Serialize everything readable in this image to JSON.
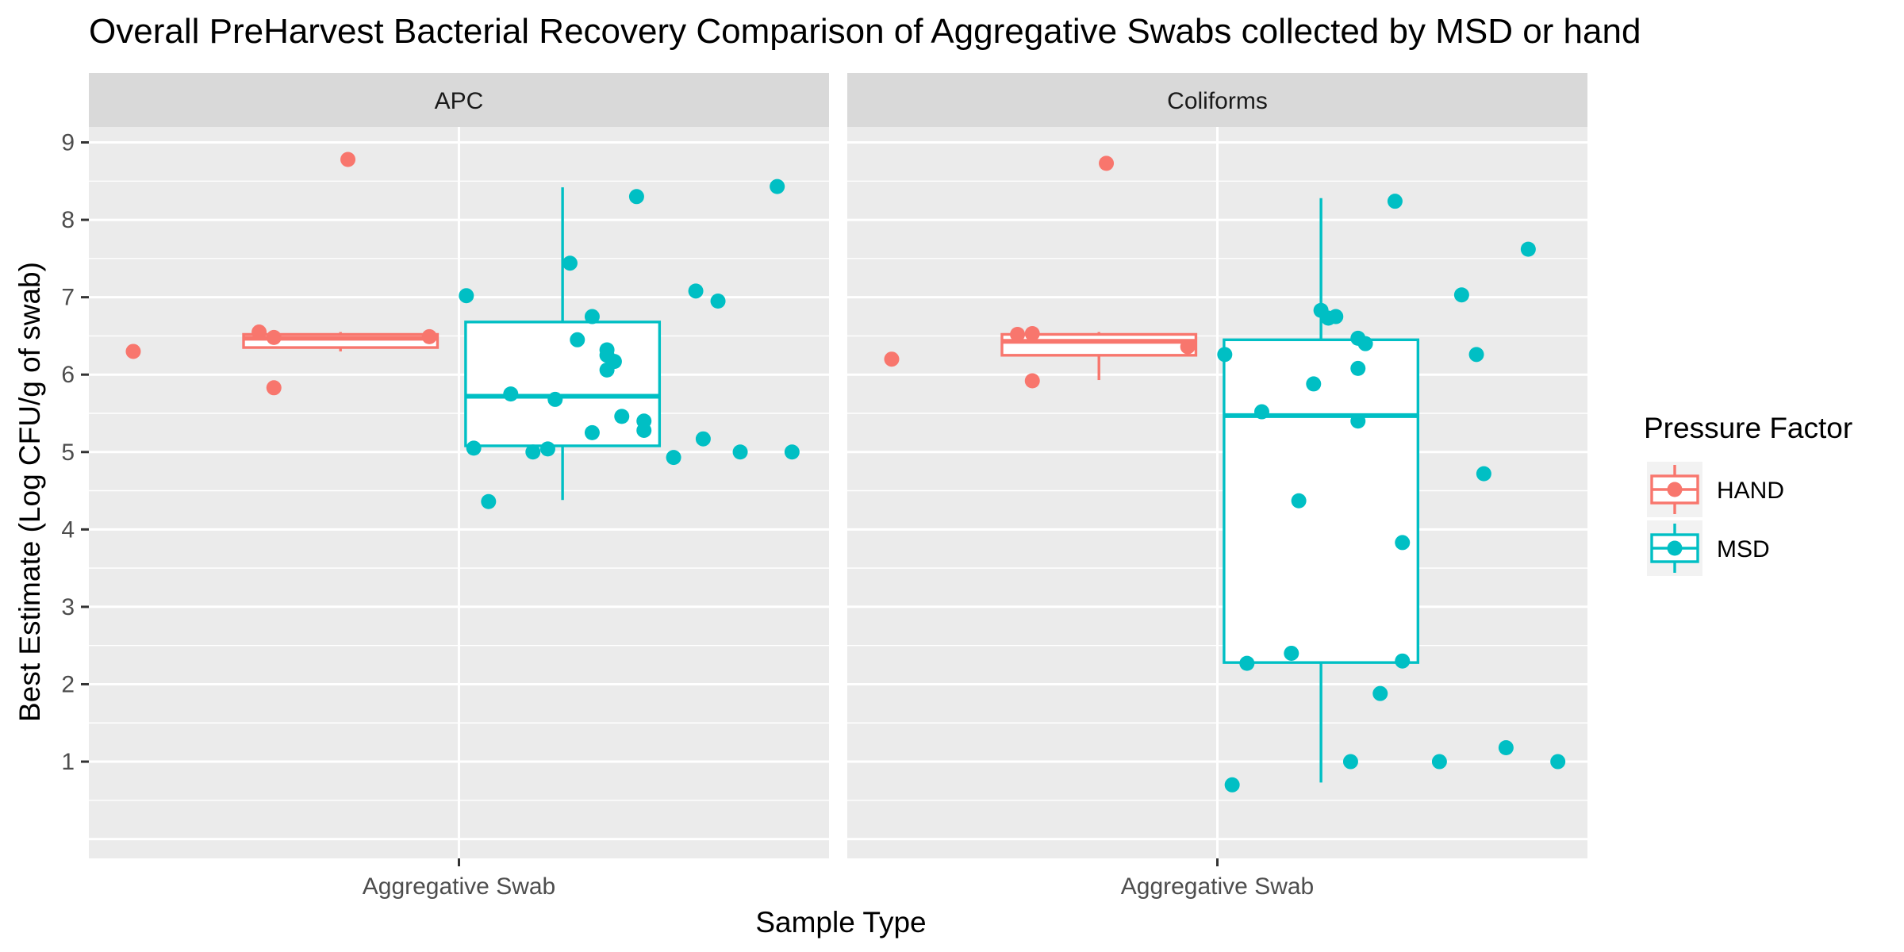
{
  "colors": {
    "panel_bg": "#EBEBEB",
    "strip_bg": "#D9D9D9",
    "grid": "#FFFFFF",
    "text": "#000000",
    "tick_text": "#4D4D4D",
    "legend_key_bg": "#F2F2F2"
  },
  "chart_data": {
    "type": "boxplot",
    "title": "Overall PreHarvest Bacterial Recovery Comparison of Aggregative Swabs collected by MSD or hand",
    "xlabel": "Sample Type",
    "ylabel": "Best Estimate (Log CFU/g of swab)",
    "y_range": [
      -0.25,
      9.2
    ],
    "y_ticks": [
      1,
      2,
      3,
      4,
      5,
      6,
      7,
      8,
      9
    ],
    "x_tick_label": "Aggregative Swab",
    "grid": true,
    "legend": {
      "title": "Pressure Factor",
      "position": "right",
      "items": [
        {
          "label": "HAND",
          "color": "#F8766D"
        },
        {
          "label": "MSD",
          "color": "#00BFC4"
        }
      ]
    },
    "panels": [
      {
        "name": "APC",
        "groups": [
          {
            "name": "HAND",
            "color": "#F8766D",
            "box": {
              "min": 6.3,
              "q1": 6.35,
              "median": 6.47,
              "q3": 6.52,
              "max": 6.55
            },
            "points": [
              [
                -0.44,
                6.3
              ],
              [
                -0.27,
                6.55
              ],
              [
                -0.25,
                6.48
              ],
              [
                -0.25,
                5.83
              ],
              [
                -0.15,
                8.78
              ],
              [
                -0.04,
                6.49
              ]
            ]
          },
          {
            "name": "MSD",
            "color": "#00BFC4",
            "box": {
              "min": 4.38,
              "q1": 5.08,
              "median": 5.72,
              "q3": 6.68,
              "max": 8.42
            },
            "points": [
              [
                0.01,
                7.02
              ],
              [
                0.02,
                5.05
              ],
              [
                0.04,
                4.36
              ],
              [
                0.07,
                5.75
              ],
              [
                0.1,
                5.0
              ],
              [
                0.12,
                5.04
              ],
              [
                0.13,
                5.68
              ],
              [
                0.15,
                7.44
              ],
              [
                0.16,
                6.45
              ],
              [
                0.18,
                6.75
              ],
              [
                0.18,
                5.25
              ],
              [
                0.2,
                6.32
              ],
              [
                0.2,
                6.25
              ],
              [
                0.2,
                6.06
              ],
              [
                0.21,
                6.17
              ],
              [
                0.22,
                5.46
              ],
              [
                0.24,
                8.3
              ],
              [
                0.25,
                5.4
              ],
              [
                0.25,
                5.28
              ],
              [
                0.29,
                4.93
              ],
              [
                0.32,
                7.08
              ],
              [
                0.33,
                5.17
              ],
              [
                0.35,
                6.95
              ],
              [
                0.38,
                5.0
              ],
              [
                0.43,
                8.43
              ],
              [
                0.45,
                5.0
              ]
            ]
          }
        ]
      },
      {
        "name": "Coliforms",
        "groups": [
          {
            "name": "HAND",
            "color": "#F8766D",
            "box": {
              "min": 5.93,
              "q1": 6.25,
              "median": 6.43,
              "q3": 6.52,
              "max": 6.55
            },
            "points": [
              [
                -0.44,
                6.2
              ],
              [
                -0.27,
                6.52
              ],
              [
                -0.25,
                6.53
              ],
              [
                -0.25,
                5.92
              ],
              [
                -0.15,
                8.73
              ],
              [
                -0.04,
                6.36
              ]
            ]
          },
          {
            "name": "MSD",
            "color": "#00BFC4",
            "box": {
              "min": 0.73,
              "q1": 2.28,
              "median": 5.47,
              "q3": 6.45,
              "max": 8.28
            },
            "points": [
              [
                0.01,
                6.26
              ],
              [
                0.02,
                0.7
              ],
              [
                0.04,
                2.27
              ],
              [
                0.06,
                5.52
              ],
              [
                0.1,
                2.4
              ],
              [
                0.11,
                4.37
              ],
              [
                0.13,
                5.88
              ],
              [
                0.14,
                6.83
              ],
              [
                0.15,
                6.73
              ],
              [
                0.16,
                6.75
              ],
              [
                0.18,
                1.0
              ],
              [
                0.19,
                6.47
              ],
              [
                0.19,
                5.4
              ],
              [
                0.19,
                6.08
              ],
              [
                0.2,
                6.4
              ],
              [
                0.22,
                1.88
              ],
              [
                0.24,
                8.24
              ],
              [
                0.25,
                3.83
              ],
              [
                0.25,
                2.3
              ],
              [
                0.3,
                1.0
              ],
              [
                0.33,
                7.03
              ],
              [
                0.35,
                6.26
              ],
              [
                0.36,
                4.72
              ],
              [
                0.39,
                1.18
              ],
              [
                0.42,
                7.62
              ],
              [
                0.46,
                1.0
              ]
            ]
          }
        ]
      }
    ]
  }
}
